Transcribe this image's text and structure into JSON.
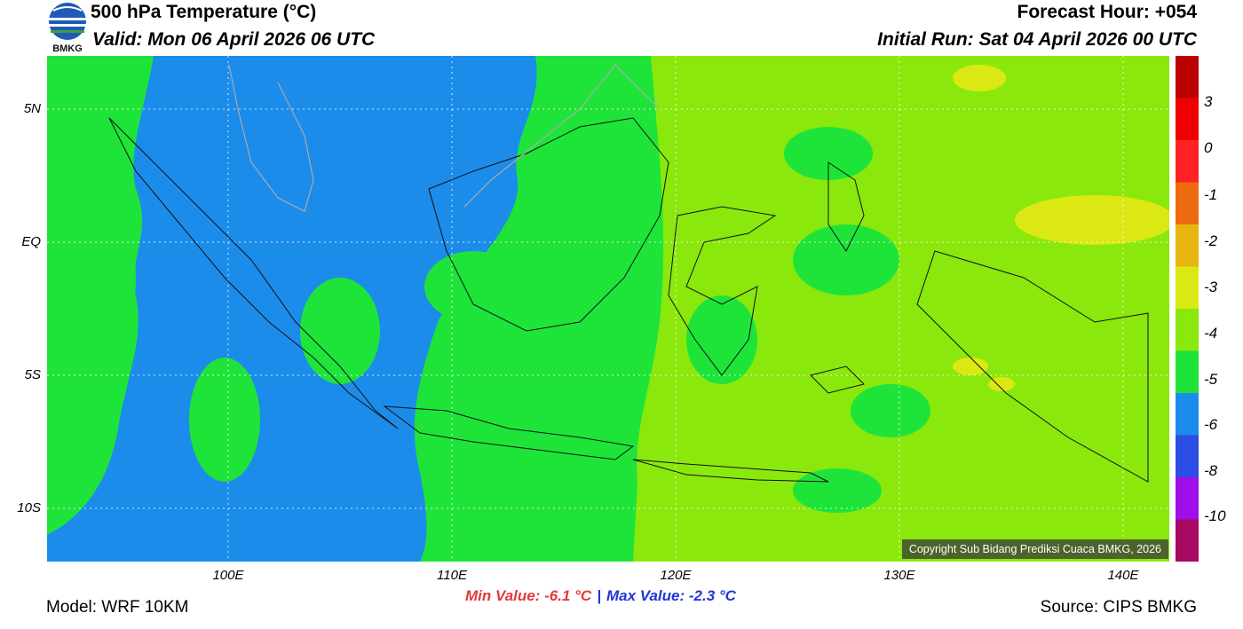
{
  "header": {
    "logo_text": "BMKG",
    "title": "500 hPa Temperature (°C)",
    "valid": "Valid: Mon 06 April 2026 06 UTC",
    "forecast_hour": "Forecast Hour: +054",
    "initial_run": "Initial Run: Sat 04 April 2026 00 UTC"
  },
  "axes": {
    "latitude_labels": [
      "5N",
      "EQ",
      "5S",
      "10S"
    ],
    "longitude_labels": [
      "100E",
      "110E",
      "120E",
      "130E",
      "140E"
    ]
  },
  "colorbar": {
    "labels": [
      "3",
      "0",
      "-1",
      "-2",
      "-3",
      "-4",
      "-5",
      "-6",
      "-8",
      "-10"
    ],
    "colors": [
      "#bb0000",
      "#ee0000",
      "#ff2222",
      "#ee6a10",
      "#e8b410",
      "#dce814",
      "#8ae80c",
      "#1ee43a",
      "#1c8ceb",
      "#2c4ee4",
      "#a00ee8",
      "#a80a62"
    ]
  },
  "stats": {
    "min_value": "Min Value: -6.1 °C",
    "separator": "|",
    "max_value": "Max Value: -2.3 °C"
  },
  "footer": {
    "model": "Model: WRF 10KM",
    "source": "Source: CIPS BMKG",
    "copyright": "Copyright Sub Bidang Prediksi Cuaca BMKG, 2026"
  },
  "map_colors": {
    "cold_blue": "#1c8ceb",
    "green": "#1ee43a",
    "yellow_green": "#8ae80c",
    "yellow": "#dce814"
  }
}
